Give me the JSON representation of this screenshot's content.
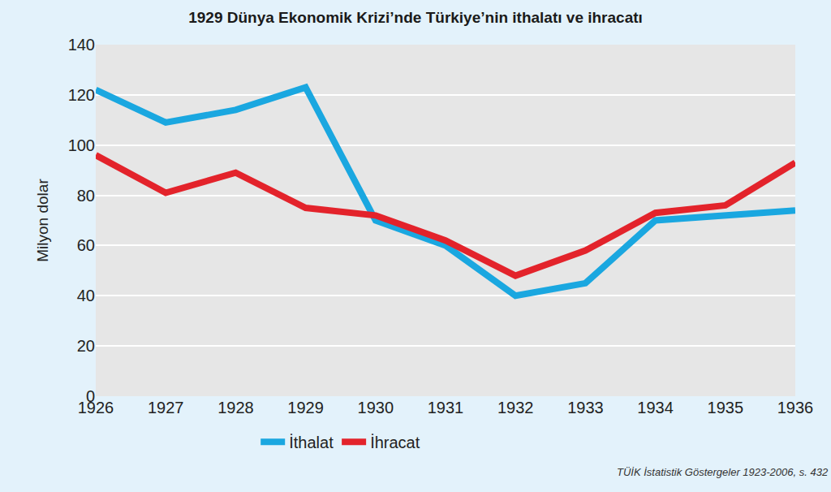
{
  "chart_data": {
    "type": "line",
    "title": "1929 Dünya Ekonomik Krizi’nde Türkiye’nin ithalatı ve ihracatı",
    "y_label": "Milyon dolar",
    "categories": [
      "1926",
      "1927",
      "1928",
      "1929",
      "1930",
      "1931",
      "1932",
      "1933",
      "1934",
      "1935",
      "1936"
    ],
    "series": [
      {
        "name": "İthalat",
        "color": "#1aa7e0",
        "values": [
          122,
          109,
          114,
          123,
          70,
          60,
          40,
          45,
          70,
          72,
          74
        ]
      },
      {
        "name": "İhracat",
        "color": "#e3232b",
        "values": [
          96,
          81,
          89,
          75,
          72,
          62,
          48,
          58,
          73,
          76,
          93
        ]
      }
    ],
    "ylim": [
      0,
      140
    ],
    "yticks": [
      0,
      20,
      40,
      60,
      80,
      100,
      120,
      140
    ],
    "grid": true,
    "legend": "bottom",
    "annotations": [
      "TÜİK İstatistik Göstergeler 1923-2006, s. 432"
    ]
  }
}
